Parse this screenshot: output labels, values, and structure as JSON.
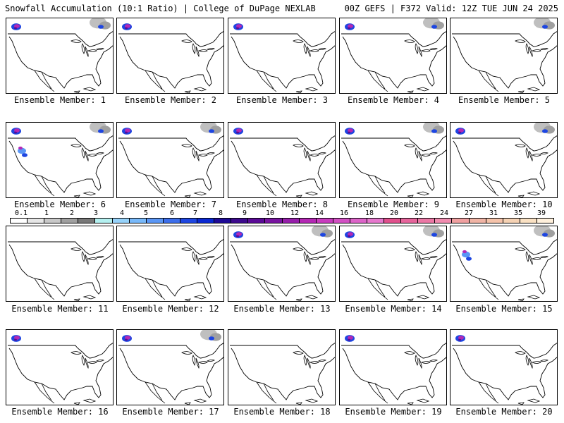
{
  "header": {
    "left_title": "Snowfall Accumulation (10:1 Ratio) | College of DuPage NEXLAB",
    "right_title": "00Z GEFS | F372 Valid: 12Z TUE JUN 24 2025"
  },
  "members": [
    {
      "label": "Ensemble Member: 1",
      "snow_regions": [
        "northwest",
        "northeast-canada"
      ]
    },
    {
      "label": "Ensemble Member: 2",
      "snow_regions": [
        "northwest"
      ]
    },
    {
      "label": "Ensemble Member: 3",
      "snow_regions": [
        "northwest"
      ]
    },
    {
      "label": "Ensemble Member: 4",
      "snow_regions": [
        "northwest",
        "northeast-canada"
      ]
    },
    {
      "label": "Ensemble Member: 5",
      "snow_regions": [
        "northeast-canada"
      ]
    },
    {
      "label": "Ensemble Member: 6",
      "snow_regions": [
        "northwest",
        "west",
        "northeast-canada"
      ]
    },
    {
      "label": "Ensemble Member: 7",
      "snow_regions": [
        "northwest",
        "northeast-canada"
      ]
    },
    {
      "label": "Ensemble Member: 8",
      "snow_regions": [
        "northwest"
      ]
    },
    {
      "label": "Ensemble Member: 9",
      "snow_regions": [
        "northwest",
        "northeast-canada"
      ]
    },
    {
      "label": "Ensemble Member: 10",
      "snow_regions": [
        "northwest",
        "northeast-canada"
      ]
    },
    {
      "label": "Ensemble Member: 11",
      "snow_regions": []
    },
    {
      "label": "Ensemble Member: 12",
      "snow_regions": []
    },
    {
      "label": "Ensemble Member: 13",
      "snow_regions": [
        "northwest",
        "northeast-canada"
      ]
    },
    {
      "label": "Ensemble Member: 14",
      "snow_regions": [
        "northwest",
        "northeast-canada"
      ]
    },
    {
      "label": "Ensemble Member: 15",
      "snow_regions": [
        "west",
        "northeast-canada"
      ]
    },
    {
      "label": "Ensemble Member: 16",
      "snow_regions": [
        "northwest"
      ]
    },
    {
      "label": "Ensemble Member: 17",
      "snow_regions": [
        "northwest",
        "northeast-canada"
      ]
    },
    {
      "label": "Ensemble Member: 18",
      "snow_regions": []
    },
    {
      "label": "Ensemble Member: 19",
      "snow_regions": [
        "northwest"
      ]
    },
    {
      "label": "Ensemble Member: 20",
      "snow_regions": [
        "northwest"
      ]
    }
  ],
  "colorbar": {
    "labels": [
      "0.1",
      "1",
      "2",
      "3",
      "4",
      "5",
      "6",
      "7",
      "8",
      "9",
      "10",
      "12",
      "14",
      "16",
      "18",
      "20",
      "22",
      "24",
      "27",
      "31",
      "35",
      "39"
    ],
    "colors": [
      "#ffffff",
      "#e6e6e6",
      "#c8c8c8",
      "#a0a0a0",
      "#787878",
      "#b4f0f0",
      "#96d2fa",
      "#78b9fa",
      "#5a96f5",
      "#3c6eeb",
      "#1e46e1",
      "#0a28d2",
      "#1e0a96",
      "#3c0a8c",
      "#5a0a96",
      "#7814a0",
      "#961eaa",
      "#b428b4",
      "#c83cbe",
      "#d250c3",
      "#dc64c8",
      "#e678cd",
      "#e0508c",
      "#e6649b",
      "#eb78a5",
      "#f08caf",
      "#f0a0a0",
      "#f0b4a5",
      "#f5c3aa",
      "#f5d2b4",
      "#fae1c3",
      "#fff0dc"
    ]
  }
}
